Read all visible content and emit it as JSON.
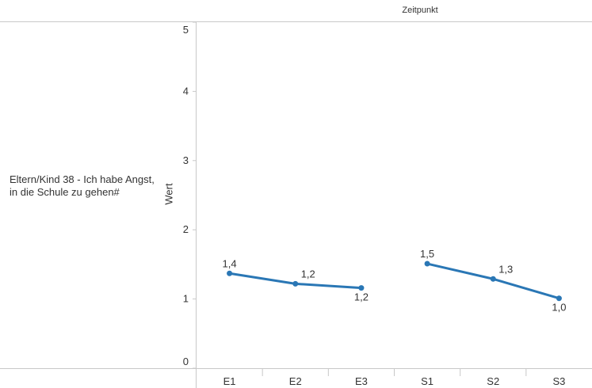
{
  "header": {
    "column_title": "Zeitpunkt"
  },
  "row_label": "Eltern/Kind 38 - Ich habe Angst, in die Schule zu gehen#",
  "chart_data": {
    "type": "line",
    "xlabel": "Zeitpunkt",
    "ylabel": "Wert",
    "ylim": [
      0,
      5
    ],
    "yticks": [
      0,
      1,
      2,
      3,
      4,
      5
    ],
    "categories": [
      "E1",
      "E2",
      "E3",
      "S1",
      "S2",
      "S3"
    ],
    "series": [
      {
        "segments": [
          {
            "categories": [
              "E1",
              "E2",
              "E3"
            ],
            "values": [
              1.37,
              1.22,
              1.16
            ],
            "labels": [
              "1,4",
              "1,2",
              "1,2"
            ]
          },
          {
            "categories": [
              "S1",
              "S2",
              "S3"
            ],
            "values": [
              1.51,
              1.29,
              1.01
            ],
            "labels": [
              "1,5",
              "1,3",
              "1,0"
            ]
          }
        ],
        "color": "#2a77b5"
      }
    ],
    "grid": false,
    "legend": "none"
  }
}
